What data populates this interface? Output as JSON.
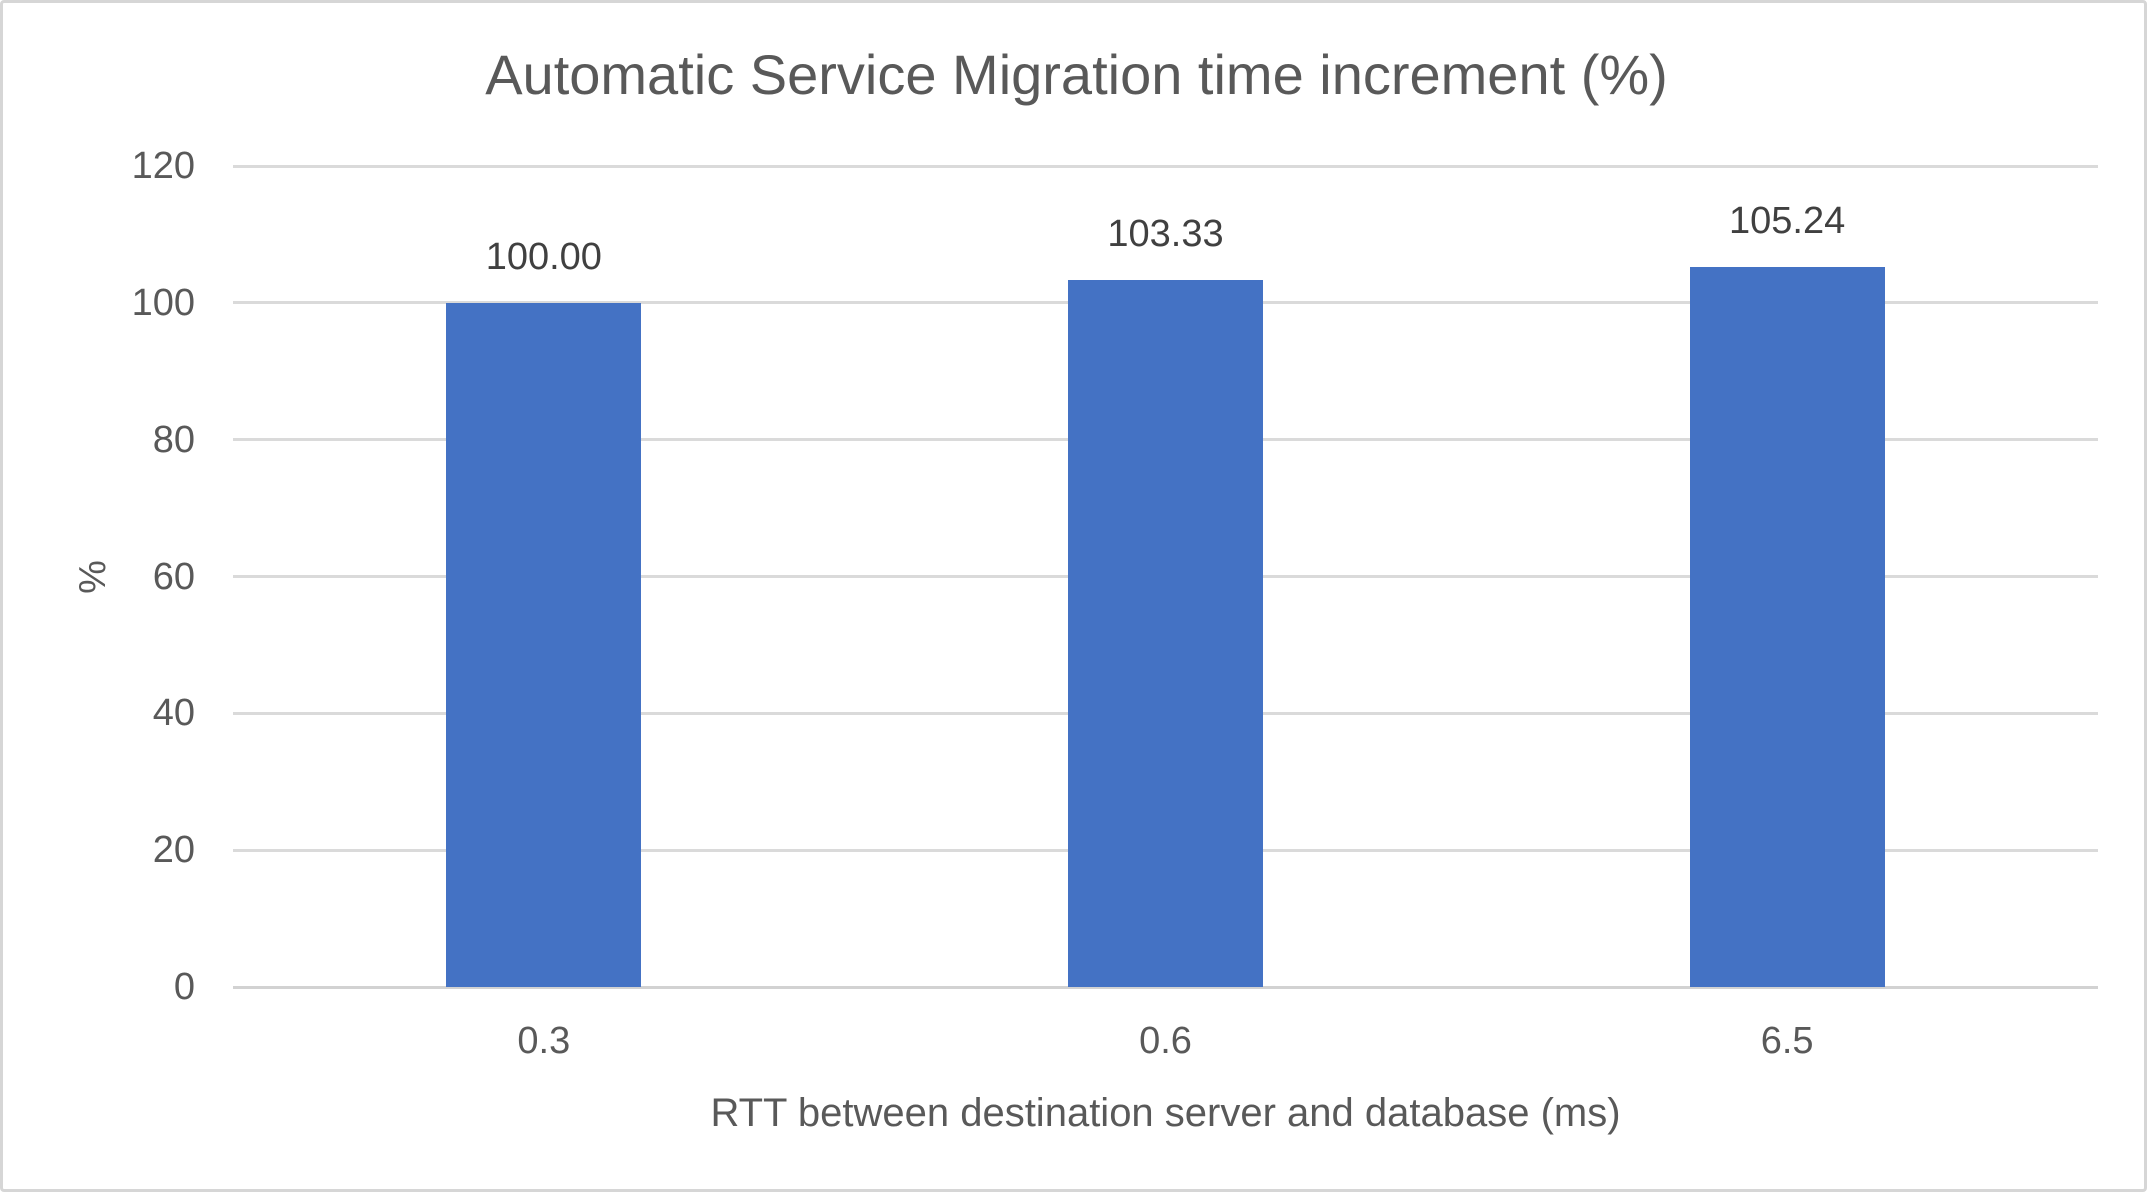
{
  "chart_data": {
    "type": "bar",
    "title": "Automatic Service Migration time increment (%)",
    "categories": [
      "0.3",
      "0.6",
      "6.5"
    ],
    "values": [
      100.0,
      103.33,
      105.24
    ],
    "value_labels": [
      "100.00",
      "103.33",
      "105.24"
    ],
    "xlabel": "RTT between destination server and database (ms)",
    "ylabel": "%",
    "ylim": [
      0,
      120
    ],
    "yticks": [
      0,
      20,
      40,
      60,
      80,
      100,
      120
    ],
    "grid": "horizontal-only",
    "legend": "none",
    "data_labels": "above-bars",
    "colors": {
      "bar_fill": "#4472C4",
      "axis_text": "#595959",
      "data_label_text": "#404040",
      "gridline": "#DADADA",
      "axis_line": "#D2D2D2",
      "chart_border": "#D6D6D6",
      "background": "#FFFFFF"
    }
  }
}
